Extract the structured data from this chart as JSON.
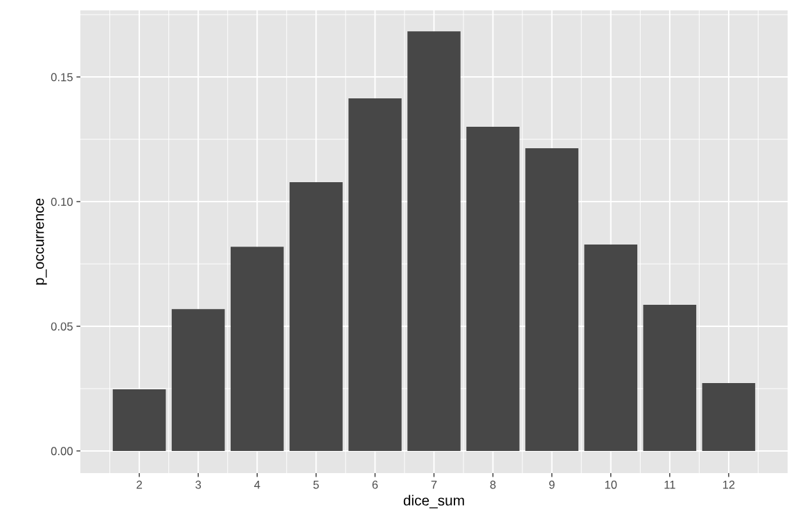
{
  "chart_data": {
    "type": "bar",
    "xlabel": "dice_sum",
    "ylabel": "p_occurrence",
    "x": [
      2,
      3,
      4,
      5,
      6,
      7,
      8,
      9,
      10,
      11,
      12
    ],
    "values": [
      0.0247,
      0.0569,
      0.0819,
      0.1078,
      0.1414,
      0.1683,
      0.13,
      0.1214,
      0.0828,
      0.0586,
      0.0272
    ],
    "color": "#474747",
    "xlim": [
      1.0,
      13.0
    ],
    "xticks": [
      2,
      3,
      4,
      5,
      6,
      7,
      8,
      9,
      10,
      11,
      12
    ],
    "ylim": [
      -0.0089,
      0.1767
    ],
    "yticks": [
      {
        "value": 0,
        "label": "0.00"
      },
      {
        "value": 0.05,
        "label": "0.05"
      },
      {
        "value": 0.1,
        "label": "0.10"
      },
      {
        "value": 0.15,
        "label": "0.15"
      }
    ],
    "grid": true
  }
}
